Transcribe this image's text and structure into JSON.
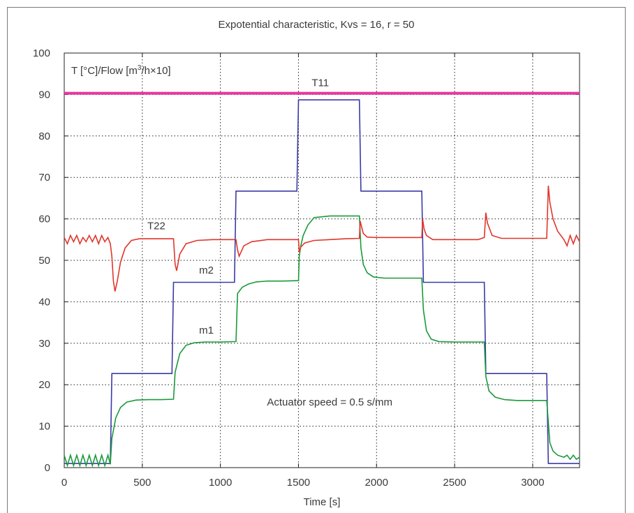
{
  "chart_data": {
    "type": "line",
    "title": "Expotential characteristic, Kvs = 16, r = 50",
    "xlabel": "Time [s]",
    "ylabel_parts": {
      "main": "T [°C]/Flow [m",
      "sup": "3",
      "tail": "/h×10]"
    },
    "annotation": "Actuator speed = 0.5 s/mm",
    "xlim": [
      0,
      3300
    ],
    "ylim": [
      0,
      100
    ],
    "x_ticks": [
      0,
      500,
      1000,
      1500,
      2000,
      2500,
      3000
    ],
    "y_ticks": [
      0,
      10,
      20,
      30,
      40,
      50,
      60,
      70,
      80,
      90,
      100
    ],
    "grid": true,
    "series": [
      {
        "name": "T11",
        "color": "#e8379b",
        "x": [
          0,
          3300
        ],
        "y": [
          90.3,
          90.3
        ]
      },
      {
        "name": "m2",
        "color": "#3a3aa8",
        "x": [
          0,
          295,
          305,
          690,
          700,
          1090,
          1100,
          1490,
          1500,
          1890,
          1900,
          2290,
          2300,
          2690,
          2700,
          3090,
          3100,
          3300
        ],
        "y": [
          1,
          1,
          22.7,
          22.7,
          44.7,
          44.7,
          66.7,
          66.7,
          88.7,
          88.7,
          66.7,
          66.7,
          44.7,
          44.7,
          22.7,
          22.7,
          1,
          1
        ]
      },
      {
        "name": "m1",
        "color": "#1a9a3a",
        "x": [
          0,
          20,
          40,
          60,
          80,
          100,
          120,
          140,
          160,
          180,
          200,
          220,
          240,
          260,
          280,
          295,
          305,
          330,
          360,
          400,
          460,
          540,
          620,
          700,
          710,
          740,
          780,
          830,
          900,
          1000,
          1100,
          1110,
          1140,
          1180,
          1230,
          1300,
          1400,
          1500,
          1505,
          1515,
          1530,
          1560,
          1600,
          1700,
          1800,
          1890,
          1900,
          1915,
          1940,
          1980,
          2050,
          2150,
          2290,
          2300,
          2320,
          2350,
          2400,
          2500,
          2600,
          2690,
          2700,
          2720,
          2760,
          2820,
          2900,
          3000,
          3090,
          3100,
          3110,
          3130,
          3160,
          3200,
          3220,
          3240,
          3260,
          3280,
          3300
        ],
        "y": [
          3,
          0.5,
          3,
          0.5,
          3,
          0.5,
          3,
          0.5,
          3,
          0.5,
          3,
          0.5,
          3,
          0.5,
          3,
          0.8,
          7,
          12,
          14.5,
          15.8,
          16.3,
          16.4,
          16.4,
          16.5,
          23,
          27.5,
          29.5,
          30.1,
          30.3,
          30.3,
          30.4,
          42,
          43.5,
          44.3,
          44.8,
          45,
          45,
          45.1,
          51,
          53.5,
          56,
          58.5,
          60.3,
          60.7,
          60.7,
          60.7,
          53,
          49,
          47,
          46,
          45.7,
          45.7,
          45.7,
          38,
          33,
          31,
          30.4,
          30.3,
          30.3,
          30.3,
          22,
          18.5,
          17,
          16.4,
          16.2,
          16.2,
          16.2,
          11,
          6,
          4,
          3,
          2.5,
          3,
          2,
          3,
          2,
          2.5
        ]
      },
      {
        "name": "T22",
        "color": "#e0362c",
        "x": [
          0,
          20,
          40,
          60,
          80,
          100,
          120,
          140,
          160,
          180,
          200,
          220,
          240,
          260,
          280,
          295,
          305,
          315,
          325,
          340,
          360,
          390,
          430,
          480,
          560,
          650,
          700,
          710,
          720,
          740,
          780,
          850,
          950,
          1050,
          1100,
          1110,
          1120,
          1150,
          1200,
          1300,
          1400,
          1500,
          1505,
          1515,
          1540,
          1600,
          1700,
          1800,
          1890,
          1895,
          1905,
          1915,
          1940,
          2000,
          2100,
          2200,
          2290,
          2295,
          2305,
          2320,
          2360,
          2450,
          2550,
          2650,
          2690,
          2700,
          2710,
          2740,
          2800,
          2950,
          3050,
          3090,
          3100,
          3110,
          3130,
          3160,
          3200,
          3220,
          3240,
          3260,
          3280,
          3300
        ],
        "y": [
          55.5,
          54,
          56,
          54.5,
          56,
          54,
          55.5,
          54.5,
          56,
          54.5,
          56,
          54,
          56,
          54.5,
          55.5,
          54,
          51,
          45,
          42.5,
          45,
          49.5,
          53,
          54.8,
          55.2,
          55.2,
          55.2,
          55.2,
          49,
          47.5,
          51.5,
          54,
          54.8,
          55,
          55,
          55,
          52.5,
          51,
          53.5,
          54.5,
          55,
          55,
          55,
          52,
          53.2,
          54.2,
          54.8,
          55,
          55.2,
          55.3,
          59.5,
          58,
          56.5,
          55.6,
          55.5,
          55.5,
          55.5,
          55.5,
          60,
          57.5,
          56,
          55,
          55,
          55,
          55,
          55.5,
          61.5,
          59,
          56,
          55.3,
          55.3,
          55.3,
          55.3,
          68,
          64,
          60,
          57,
          55,
          53.5,
          56,
          54,
          56,
          54.5
        ]
      }
    ],
    "series_labels": [
      {
        "text": "T11",
        "x": 1640,
        "y": 92
      },
      {
        "text": "T22",
        "x": 590,
        "y": 57.5
      },
      {
        "text": "m2",
        "x": 910,
        "y": 46.8
      },
      {
        "text": "m1",
        "x": 910,
        "y": 32.3
      }
    ],
    "annotation_pos": {
      "x": 1700,
      "y": 15
    }
  }
}
